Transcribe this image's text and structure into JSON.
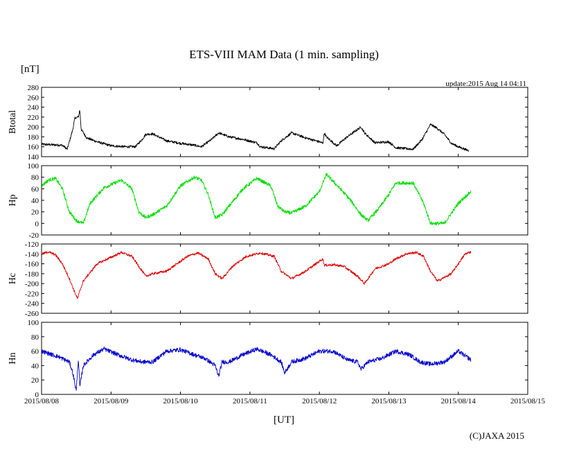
{
  "title": "ETS-VIII MAM Data (1 min. sampling)",
  "unit_label": "[nT]",
  "update_text": "update:2015 Aug 14 04:11",
  "xlabel": "[UT]",
  "credit": "(C)JAXA 2015",
  "x_ticks": [
    "2015/08/08",
    "2015/08/09",
    "2015/08/10",
    "2015/08/11",
    "2015/08/12",
    "2015/08/13",
    "2015/08/14",
    "2015/08/15"
  ],
  "chart_data": {
    "type": "line",
    "x_range": [
      "2015/08/08 00:00",
      "2015/08/15 00:00"
    ],
    "x_unit": "days since 2015/08/08 00:00 UT",
    "panels": [
      {
        "name": "Btotal",
        "color": "#000000",
        "ylim": [
          140,
          280
        ],
        "yticks": [
          140,
          160,
          180,
          200,
          220,
          240,
          260,
          280
        ],
        "x": [
          0,
          0.3,
          0.37,
          0.45,
          0.48,
          0.53,
          0.55,
          0.57,
          0.65,
          0.8,
          1.0,
          1.2,
          1.35,
          1.45,
          1.5,
          1.6,
          1.8,
          2.0,
          2.2,
          2.3,
          2.45,
          2.55,
          2.7,
          2.9,
          3.1,
          3.15,
          3.35,
          3.45,
          3.6,
          3.8,
          4.0,
          4.05,
          4.07,
          4.1,
          4.25,
          4.4,
          4.6,
          4.65,
          4.8,
          5.0,
          5.1,
          5.35,
          5.48,
          5.6,
          5.7,
          5.8,
          5.9,
          6.0,
          6.06,
          6.15
        ],
        "y": [
          165,
          163,
          155,
          195,
          218,
          220,
          235,
          195,
          178,
          170,
          162,
          160,
          160,
          175,
          185,
          186,
          172,
          167,
          163,
          160,
          175,
          188,
          180,
          175,
          168,
          160,
          156,
          172,
          188,
          178,
          170,
          167,
          188,
          180,
          162,
          180,
          200,
          188,
          168,
          170,
          158,
          155,
          175,
          205,
          197,
          185,
          167,
          160,
          157,
          152
        ],
        "noise": 2.5
      },
      {
        "name": "Hp",
        "color": "#00dd00",
        "ylim": [
          -20,
          100
        ],
        "yticks": [
          -20,
          0,
          20,
          40,
          60,
          80,
          100
        ],
        "x": [
          0,
          0.1,
          0.2,
          0.3,
          0.4,
          0.5,
          0.6,
          0.7,
          0.9,
          1.15,
          1.3,
          1.4,
          1.5,
          1.6,
          1.8,
          2.0,
          2.2,
          2.3,
          2.4,
          2.5,
          2.6,
          2.7,
          2.9,
          3.1,
          3.3,
          3.4,
          3.5,
          3.6,
          3.8,
          4.0,
          4.1,
          4.3,
          4.45,
          4.6,
          4.7,
          4.85,
          5.0,
          5.1,
          5.35,
          5.5,
          5.6,
          5.8,
          6.0,
          6.18
        ],
        "y": [
          65,
          75,
          78,
          60,
          20,
          5,
          0,
          35,
          62,
          75,
          60,
          20,
          10,
          15,
          30,
          65,
          80,
          75,
          50,
          10,
          15,
          30,
          60,
          78,
          65,
          30,
          20,
          18,
          30,
          55,
          85,
          60,
          40,
          15,
          5,
          25,
          50,
          70,
          70,
          35,
          0,
          0,
          35,
          55
        ],
        "noise": 3
      },
      {
        "name": "Hc",
        "color": "#dd0000",
        "ylim": [
          -260,
          -120
        ],
        "yticks": [
          -260,
          -240,
          -220,
          -200,
          -180,
          -160,
          -140,
          -120
        ],
        "x": [
          0,
          0.1,
          0.2,
          0.3,
          0.4,
          0.5,
          0.52,
          0.55,
          0.6,
          0.8,
          1.15,
          1.3,
          1.4,
          1.5,
          1.6,
          1.8,
          2.1,
          2.25,
          2.4,
          2.5,
          2.6,
          2.75,
          2.95,
          3.15,
          3.35,
          3.45,
          3.6,
          3.8,
          4.05,
          4.07,
          4.2,
          4.35,
          4.55,
          4.65,
          4.8,
          5.0,
          5.1,
          5.25,
          5.4,
          5.5,
          5.6,
          5.7,
          5.9,
          6.1,
          6.18
        ],
        "y": [
          -140,
          -136,
          -142,
          -160,
          -190,
          -225,
          -230,
          -215,
          -195,
          -160,
          -137,
          -145,
          -165,
          -185,
          -180,
          -175,
          -145,
          -138,
          -150,
          -180,
          -190,
          -165,
          -145,
          -138,
          -145,
          -175,
          -190,
          -175,
          -150,
          -163,
          -162,
          -165,
          -185,
          -200,
          -170,
          -160,
          -150,
          -140,
          -137,
          -145,
          -175,
          -195,
          -180,
          -140,
          -136
        ],
        "noise": 2.5
      },
      {
        "name": "Hn",
        "color": "#0000cc",
        "ylim": [
          0,
          100
        ],
        "yticks": [
          0,
          20,
          40,
          60,
          80,
          100
        ],
        "x": [
          0,
          0.25,
          0.4,
          0.45,
          0.5,
          0.53,
          0.55,
          0.6,
          0.75,
          0.9,
          1.1,
          1.3,
          1.45,
          1.6,
          1.8,
          2.0,
          2.2,
          2.35,
          2.5,
          2.55,
          2.6,
          2.7,
          2.9,
          3.1,
          3.3,
          3.45,
          3.5,
          3.6,
          3.8,
          4.0,
          4.2,
          4.4,
          4.55,
          4.6,
          4.7,
          4.9,
          5.1,
          5.3,
          5.45,
          5.6,
          5.8,
          6.0,
          6.18
        ],
        "y": [
          60,
          52,
          45,
          30,
          5,
          50,
          10,
          40,
          55,
          63,
          55,
          48,
          45,
          45,
          60,
          62,
          55,
          50,
          40,
          25,
          45,
          45,
          55,
          63,
          55,
          45,
          30,
          45,
          50,
          60,
          60,
          48,
          45,
          35,
          45,
          50,
          60,
          55,
          45,
          42,
          45,
          60,
          48
        ],
        "noise": 3
      }
    ]
  }
}
